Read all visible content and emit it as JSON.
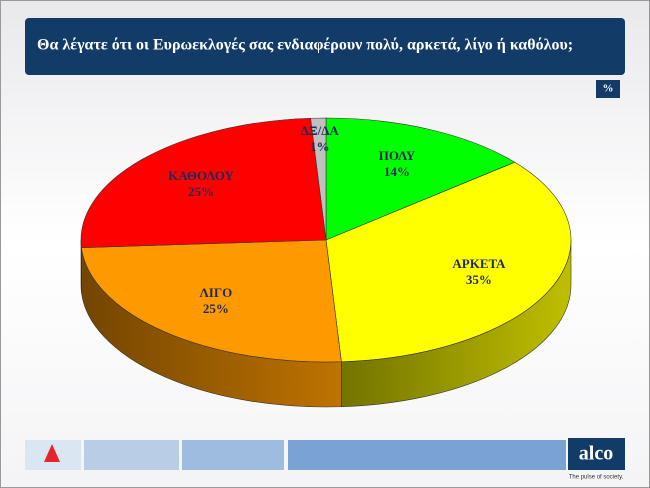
{
  "chart_data": {
    "type": "pie",
    "title": "Θα λέγατε ότι οι Ευρωεκλογές σας ενδιαφέρουν πολύ, αρκετά, λίγο ή καθόλου;",
    "unit_label": "%",
    "categories": [
      "ΠΟΛΥ",
      "ΑΡΚΕΤΑ",
      "ΛΙΓΟ",
      "ΚΑΘΟΛΟΥ",
      "ΔΞ/ΔΑ"
    ],
    "values": [
      14,
      35,
      25,
      25,
      1
    ],
    "value_labels": [
      "14%",
      "35%",
      "25%",
      "25%",
      "1%"
    ],
    "colors": [
      "#00ff00",
      "#ffff00",
      "#ff9900",
      "#ff0000",
      "#c0c0c0"
    ]
  },
  "footer": {
    "logo": "alco",
    "tagline": "The pulse of society."
  }
}
